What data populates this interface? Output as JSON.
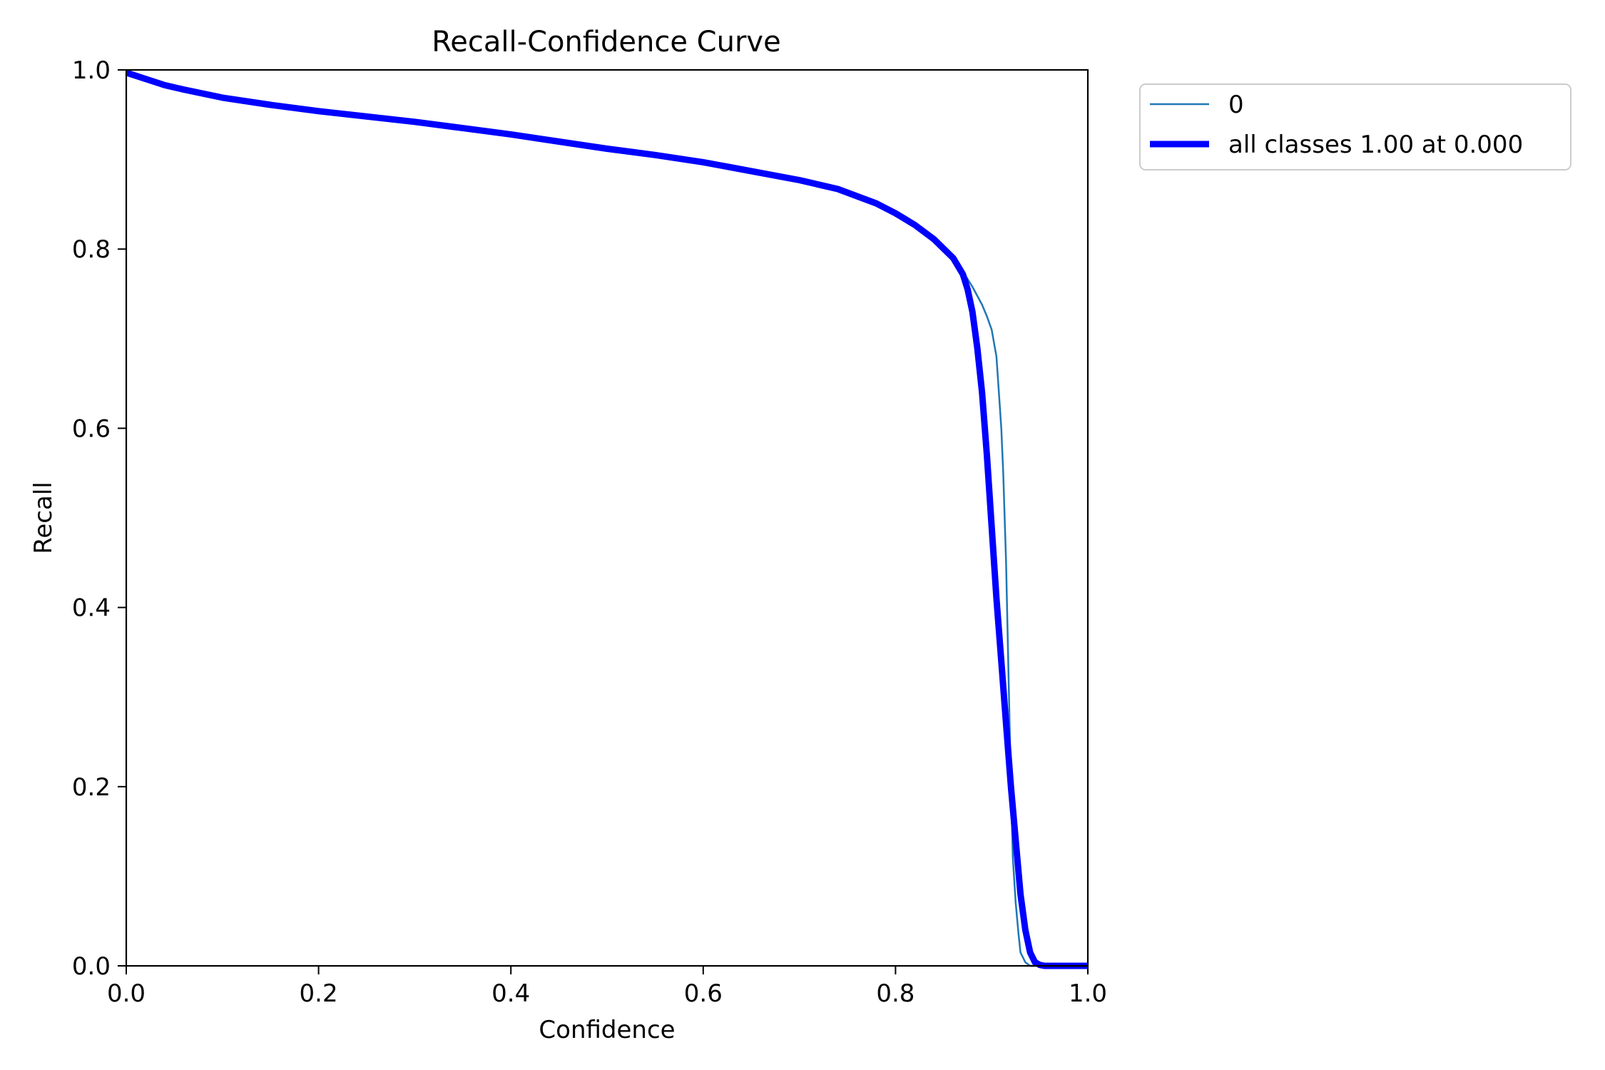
{
  "chart_data": {
    "type": "line",
    "title": "Recall-Confidence Curve",
    "xlabel": "Confidence",
    "ylabel": "Recall",
    "xlim": [
      0.0,
      1.0
    ],
    "ylim": [
      0.0,
      1.0
    ],
    "xticks": [
      "0.0",
      "0.2",
      "0.4",
      "0.6",
      "0.8",
      "1.0"
    ],
    "yticks": [
      "0.0",
      "0.2",
      "0.4",
      "0.6",
      "0.8",
      "1.0"
    ],
    "grid": false,
    "legend_position": "outside-top-right",
    "series": [
      {
        "name": "0",
        "color": "#1f77b4",
        "style": "thin",
        "x": [
          0.0,
          0.02,
          0.04,
          0.06,
          0.1,
          0.15,
          0.2,
          0.25,
          0.3,
          0.35,
          0.4,
          0.45,
          0.5,
          0.55,
          0.6,
          0.65,
          0.7,
          0.74,
          0.78,
          0.8,
          0.82,
          0.84,
          0.86,
          0.87,
          0.88,
          0.89,
          0.895,
          0.9,
          0.905,
          0.91,
          0.912,
          0.915,
          0.918,
          0.92,
          0.922,
          0.925,
          0.928,
          0.93,
          0.935,
          0.94,
          0.95,
          1.0
        ],
        "y": [
          0.997,
          0.99,
          0.983,
          0.978,
          0.969,
          0.961,
          0.954,
          0.948,
          0.942,
          0.935,
          0.928,
          0.92,
          0.912,
          0.905,
          0.897,
          0.887,
          0.877,
          0.867,
          0.851,
          0.84,
          0.827,
          0.811,
          0.79,
          0.775,
          0.758,
          0.738,
          0.725,
          0.71,
          0.68,
          0.6,
          0.55,
          0.45,
          0.3,
          0.2,
          0.12,
          0.07,
          0.035,
          0.015,
          0.004,
          0.0,
          0.0,
          0.0
        ]
      },
      {
        "name": "all classes 1.00 at 0.000",
        "color": "#0000ff",
        "style": "thick",
        "x": [
          0.0,
          0.02,
          0.04,
          0.06,
          0.1,
          0.15,
          0.2,
          0.25,
          0.3,
          0.35,
          0.4,
          0.45,
          0.5,
          0.55,
          0.6,
          0.65,
          0.7,
          0.74,
          0.78,
          0.8,
          0.82,
          0.84,
          0.86,
          0.87,
          0.875,
          0.88,
          0.885,
          0.89,
          0.895,
          0.9,
          0.905,
          0.91,
          0.915,
          0.92,
          0.925,
          0.93,
          0.935,
          0.94,
          0.945,
          0.95,
          0.955,
          0.96,
          1.0
        ],
        "y": [
          0.997,
          0.99,
          0.983,
          0.978,
          0.969,
          0.961,
          0.954,
          0.948,
          0.942,
          0.935,
          0.928,
          0.92,
          0.912,
          0.905,
          0.897,
          0.887,
          0.877,
          0.867,
          0.851,
          0.84,
          0.827,
          0.811,
          0.79,
          0.772,
          0.755,
          0.73,
          0.69,
          0.64,
          0.57,
          0.49,
          0.41,
          0.34,
          0.27,
          0.2,
          0.14,
          0.08,
          0.04,
          0.015,
          0.004,
          0.001,
          0.0,
          0.0,
          0.0
        ]
      }
    ]
  }
}
